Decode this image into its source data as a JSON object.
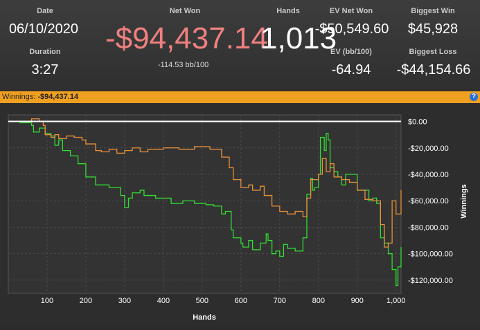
{
  "stats": {
    "date_label": "Date",
    "date_value": "06/10/2020",
    "duration_label": "Duration",
    "duration_value": "3:27",
    "net_won_label": "Net Won",
    "net_won_value": "-$94,437.14",
    "net_won_sub": "-114.53 bb/100",
    "hands_label": "Hands",
    "hands_value": "1,013",
    "ev_net_won_label": "EV Net Won",
    "ev_net_won_value": "-$50,549.60",
    "ev_bb_label": "EV (bb/100)",
    "ev_bb_value": "-64.94",
    "biggest_win_label": "Biggest Win",
    "biggest_win_value": "$45,928",
    "biggest_loss_label": "Biggest Loss",
    "biggest_loss_value": "-$44,154.66"
  },
  "bar": {
    "label": "Winnings:",
    "value": "-$94,437.14",
    "help_glyph": "?"
  },
  "colors": {
    "net_won": "#f08080",
    "bar": "#f0a020",
    "winnings_line": "#33dd33",
    "ev_line": "#e8903a",
    "zero_line": "#ffffff"
  },
  "chart_data": {
    "type": "line",
    "xlabel": "Hands",
    "ylabel": "Winnings",
    "xlim": [
      0,
      1013
    ],
    "ylim": [
      -130000,
      5000
    ],
    "x_ticks": [
      100,
      200,
      300,
      400,
      500,
      600,
      700,
      800,
      900,
      1000
    ],
    "x_tick_labels": [
      "100",
      "200",
      "300",
      "400",
      "500",
      "600",
      "700",
      "800",
      "900",
      "1,000"
    ],
    "y_ticks": [
      0,
      -20000,
      -40000,
      -60000,
      -80000,
      -100000,
      -120000
    ],
    "y_tick_labels": [
      "$0.00",
      "-$20,000.00",
      "-$40,000.00",
      "-$60,000.00",
      "-$80,000.00",
      "-$100,000.00",
      "-$120,000.00"
    ],
    "grid": true,
    "series": [
      {
        "color": "#33dd33",
        "x": [
          0,
          30,
          60,
          65,
          80,
          95,
          110,
          120,
          130,
          140,
          160,
          180,
          200,
          225,
          260,
          290,
          300,
          310,
          320,
          340,
          350,
          380,
          420,
          450,
          480,
          510,
          530,
          550,
          560,
          575,
          580,
          600,
          605,
          620,
          630,
          650,
          665,
          670,
          680,
          690,
          700,
          710,
          720,
          740,
          760,
          770,
          780,
          785,
          790,
          800,
          805,
          815,
          820,
          825,
          830,
          840,
          850,
          860,
          870,
          900,
          930,
          940,
          950,
          960,
          970,
          980,
          990,
          1000,
          1005,
          1013
        ],
        "values": [
          0,
          -1000,
          -3000,
          -8000,
          -5000,
          -9000,
          -11000,
          -18000,
          -14000,
          -22000,
          -26000,
          -32000,
          -42000,
          -48000,
          -50000,
          -56000,
          -65000,
          -58000,
          -54000,
          -52000,
          -56000,
          -58000,
          -62000,
          -60000,
          -62000,
          -63000,
          -64000,
          -70000,
          -68000,
          -82000,
          -88000,
          -92000,
          -95000,
          -90000,
          -97000,
          -92000,
          -85000,
          -90000,
          -100000,
          -98000,
          -102000,
          -93000,
          -96000,
          -98000,
          -88000,
          -55000,
          -43000,
          -52000,
          -50000,
          -40000,
          -12000,
          -22000,
          -9000,
          -14000,
          -35000,
          -38000,
          -42000,
          -48000,
          -40000,
          -52000,
          -60000,
          -58000,
          -62000,
          -88000,
          -92000,
          -100000,
          -112000,
          -124000,
          -110000,
          -95000
        ]
      },
      {
        "color": "#e8903a",
        "x": [
          0,
          40,
          60,
          80,
          90,
          95,
          110,
          120,
          130,
          150,
          170,
          190,
          200,
          225,
          240,
          260,
          280,
          300,
          320,
          340,
          360,
          400,
          440,
          480,
          520,
          550,
          570,
          580,
          600,
          620,
          630,
          650,
          660,
          680,
          700,
          720,
          740,
          760,
          770,
          780,
          800,
          810,
          820,
          830,
          840,
          860,
          880,
          900,
          920,
          940,
          960,
          970,
          980,
          990,
          1000,
          1013
        ],
        "values": [
          0,
          0,
          2000,
          0,
          -3000,
          -10000,
          -12000,
          -10000,
          -13000,
          -11000,
          -12000,
          -14000,
          -17000,
          -22000,
          -23000,
          -21000,
          -24000,
          -22000,
          -20000,
          -23000,
          -21000,
          -20000,
          -21000,
          -19000,
          -21000,
          -27000,
          -35000,
          -44000,
          -50000,
          -48000,
          -52000,
          -49000,
          -56000,
          -64000,
          -68000,
          -70000,
          -68000,
          -72000,
          -58000,
          -44000,
          -40000,
          -28000,
          -38000,
          -32000,
          -42000,
          -44000,
          -46000,
          -52000,
          -59000,
          -60000,
          -78000,
          -95000,
          -92000,
          -60000,
          -70000,
          -52000
        ]
      },
      {
        "color": "#ffffff",
        "x": [
          0,
          1013
        ],
        "values": [
          0,
          0
        ]
      }
    ]
  }
}
